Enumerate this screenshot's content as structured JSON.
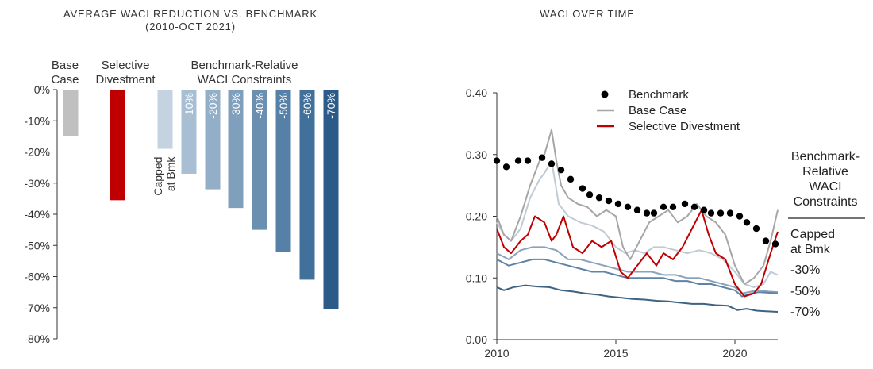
{
  "chart_data": [
    {
      "type": "bar",
      "title": "AVERAGE WACI REDUCTION VS. BENCHMARK",
      "subtitle": "(2010-OCT 2021)",
      "group_labels": [
        {
          "lines": [
            "Base",
            "Case"
          ]
        },
        {
          "lines": [
            "Selective",
            "Divestment"
          ]
        },
        {
          "lines": [
            "Benchmark-Relative",
            "WACI Constraints"
          ]
        }
      ],
      "categories": [
        "Base Case",
        "Selective Divestment",
        "Capped at Bmk",
        "-10%",
        "-20%",
        "-30%",
        "-40%",
        "-50%",
        "-60%",
        "-70%"
      ],
      "bar_labels": [
        "",
        "",
        "Capped at Bmk",
        "-10%",
        "-20%",
        "-30%",
        "-40%",
        "-50%",
        "-60%",
        "-70%"
      ],
      "values": [
        -15,
        -35.5,
        -19,
        -27,
        -32,
        -38,
        -45,
        -52,
        -61,
        -70.5
      ],
      "colors": [
        "#c0c0c0",
        "#c00000",
        "#c5d3e0",
        "#a8bfd3",
        "#93afc8",
        "#7f9fbc",
        "#6a8fb0",
        "#5680a6",
        "#41709a",
        "#2c5b8a"
      ],
      "ylim": [
        -80,
        0
      ],
      "yticks": [
        0,
        -10,
        -20,
        -30,
        -40,
        -50,
        -60,
        -70,
        -80
      ],
      "ytick_labels": [
        "0%",
        "-10%",
        "-20%",
        "-30%",
        "-40%",
        "-50%",
        "-60%",
        "-70%",
        "-80%"
      ],
      "xlabel": "",
      "ylabel": ""
    },
    {
      "type": "line",
      "title": "WACI OVER TIME",
      "xlim": [
        2010,
        2021.8
      ],
      "xticks": [
        2010,
        2015,
        2020
      ],
      "ylim": [
        0,
        0.4
      ],
      "yticks": [
        0,
        0.1,
        0.2,
        0.3,
        0.4
      ],
      "ytick_labels": [
        "0.00",
        "0.10",
        "0.20",
        "0.30",
        "0.40"
      ],
      "legend_position": "top-left",
      "side_label": {
        "lines": [
          "Benchmark-",
          "Relative",
          "WACI",
          "Constraints"
        ]
      },
      "series": [
        {
          "name": "Benchmark",
          "style": "dots",
          "color": "#000000",
          "x": [
            2010,
            2010.4,
            2010.9,
            2011.3,
            2011.9,
            2012.3,
            2012.7,
            2013.1,
            2013.6,
            2013.9,
            2014.3,
            2014.7,
            2015.1,
            2015.5,
            2015.9,
            2016.3,
            2016.6,
            2017.0,
            2017.4,
            2017.9,
            2018.3,
            2018.7,
            2019.0,
            2019.4,
            2019.8,
            2020.2,
            2020.5,
            2020.9,
            2021.3,
            2021.7
          ],
          "y": [
            0.29,
            0.28,
            0.29,
            0.29,
            0.295,
            0.285,
            0.275,
            0.26,
            0.245,
            0.235,
            0.23,
            0.225,
            0.22,
            0.215,
            0.21,
            0.205,
            0.205,
            0.215,
            0.215,
            0.22,
            0.215,
            0.21,
            0.205,
            0.205,
            0.205,
            0.2,
            0.19,
            0.18,
            0.16,
            0.155
          ]
        },
        {
          "name": "Base Case",
          "style": "line",
          "color": "#a6a6a6",
          "in_legend": true,
          "x": [
            2010,
            2010.3,
            2010.6,
            2011.0,
            2011.4,
            2011.8,
            2012.0,
            2012.3,
            2012.5,
            2012.7,
            2013.0,
            2013.4,
            2013.8,
            2014.2,
            2014.6,
            2015.0,
            2015.3,
            2015.6,
            2016.0,
            2016.4,
            2016.8,
            2017.2,
            2017.6,
            2018.0,
            2018.4,
            2018.8,
            2019.2,
            2019.6,
            2020.0,
            2020.4,
            2020.8,
            2021.2,
            2021.5,
            2021.8
          ],
          "y": [
            0.2,
            0.17,
            0.16,
            0.2,
            0.25,
            0.29,
            0.3,
            0.34,
            0.29,
            0.25,
            0.23,
            0.22,
            0.215,
            0.2,
            0.21,
            0.2,
            0.15,
            0.13,
            0.16,
            0.19,
            0.2,
            0.21,
            0.19,
            0.2,
            0.22,
            0.2,
            0.19,
            0.17,
            0.12,
            0.09,
            0.1,
            0.12,
            0.16,
            0.21
          ]
        },
        {
          "name": "Selective Divestment",
          "style": "line",
          "color": "#c00000",
          "in_legend": true,
          "x": [
            2010,
            2010.3,
            2010.6,
            2011.0,
            2011.3,
            2011.6,
            2012.0,
            2012.3,
            2012.5,
            2012.8,
            2013.2,
            2013.6,
            2014.0,
            2014.4,
            2014.8,
            2015.2,
            2015.5,
            2015.9,
            2016.3,
            2016.7,
            2017.0,
            2017.4,
            2017.8,
            2018.2,
            2018.6,
            2018.9,
            2019.2,
            2019.6,
            2020.0,
            2020.4,
            2020.8,
            2021.1,
            2021.5,
            2021.8
          ],
          "y": [
            0.18,
            0.15,
            0.14,
            0.16,
            0.17,
            0.2,
            0.19,
            0.16,
            0.17,
            0.2,
            0.15,
            0.14,
            0.16,
            0.15,
            0.16,
            0.11,
            0.1,
            0.12,
            0.14,
            0.12,
            0.14,
            0.13,
            0.15,
            0.18,
            0.21,
            0.17,
            0.14,
            0.13,
            0.09,
            0.07,
            0.075,
            0.09,
            0.14,
            0.175
          ]
        },
        {
          "name": "Capped at Bmk",
          "style": "line",
          "color": "#bfcad6",
          "in_legend": false,
          "x": [
            2010,
            2010.3,
            2010.6,
            2011.0,
            2011.4,
            2011.8,
            2012.0,
            2012.3,
            2012.6,
            2013.0,
            2013.5,
            2014.0,
            2014.5,
            2015.0,
            2015.4,
            2015.8,
            2016.2,
            2016.6,
            2017.0,
            2017.5,
            2018.0,
            2018.5,
            2019.0,
            2019.5,
            2020.0,
            2020.4,
            2020.8,
            2021.2,
            2021.5,
            2021.8
          ],
          "y": [
            0.19,
            0.17,
            0.16,
            0.18,
            0.23,
            0.26,
            0.27,
            0.29,
            0.22,
            0.2,
            0.19,
            0.185,
            0.175,
            0.15,
            0.14,
            0.145,
            0.14,
            0.15,
            0.15,
            0.145,
            0.14,
            0.145,
            0.14,
            0.13,
            0.11,
            0.09,
            0.085,
            0.09,
            0.11,
            0.105
          ]
        },
        {
          "name": "-30%",
          "style": "line",
          "color": "#8aa2ba",
          "in_legend": false,
          "x": [
            2010,
            2010.5,
            2011.0,
            2011.5,
            2012.0,
            2012.5,
            2013.0,
            2013.5,
            2014.0,
            2014.5,
            2015.0,
            2015.5,
            2016.0,
            2016.5,
            2017.0,
            2017.5,
            2018.0,
            2018.5,
            2019.0,
            2019.5,
            2020.0,
            2020.3,
            2020.7,
            2021.0,
            2021.4,
            2021.8
          ],
          "y": [
            0.14,
            0.13,
            0.145,
            0.15,
            0.15,
            0.145,
            0.13,
            0.13,
            0.125,
            0.12,
            0.115,
            0.11,
            0.11,
            0.11,
            0.105,
            0.105,
            0.1,
            0.1,
            0.095,
            0.09,
            0.085,
            0.075,
            0.078,
            0.08,
            0.078,
            0.077
          ]
        },
        {
          "name": "-50%",
          "style": "line",
          "color": "#5f83a6",
          "in_legend": false,
          "x": [
            2010,
            2010.5,
            2011.0,
            2011.5,
            2012.0,
            2012.5,
            2013.0,
            2013.5,
            2014.0,
            2014.5,
            2015.0,
            2015.5,
            2016.0,
            2016.5,
            2017.0,
            2017.5,
            2018.0,
            2018.5,
            2019.0,
            2019.5,
            2020.0,
            2020.3,
            2020.7,
            2021.0,
            2021.4,
            2021.8
          ],
          "y": [
            0.13,
            0.12,
            0.125,
            0.13,
            0.13,
            0.125,
            0.12,
            0.115,
            0.11,
            0.11,
            0.105,
            0.1,
            0.1,
            0.1,
            0.1,
            0.095,
            0.095,
            0.09,
            0.09,
            0.085,
            0.08,
            0.07,
            0.075,
            0.077,
            0.076,
            0.075
          ]
        },
        {
          "name": "-70%",
          "style": "line",
          "color": "#3d6282",
          "in_legend": false,
          "x": [
            2010,
            2010.3,
            2010.7,
            2011.2,
            2011.7,
            2012.2,
            2012.7,
            2013.2,
            2013.7,
            2014.2,
            2014.7,
            2015.2,
            2015.7,
            2016.2,
            2016.7,
            2017.2,
            2017.7,
            2018.2,
            2018.7,
            2019.2,
            2019.7,
            2020.1,
            2020.5,
            2020.9,
            2021.3,
            2021.8
          ],
          "y": [
            0.085,
            0.08,
            0.085,
            0.088,
            0.086,
            0.085,
            0.08,
            0.078,
            0.075,
            0.073,
            0.07,
            0.068,
            0.066,
            0.065,
            0.063,
            0.062,
            0.06,
            0.058,
            0.058,
            0.056,
            0.055,
            0.048,
            0.05,
            0.047,
            0.046,
            0.045
          ]
        }
      ],
      "right_labels": [
        {
          "lines": [
            "Capped",
            "at Bmk"
          ],
          "series": "Capped at Bmk"
        },
        {
          "lines": [
            "-30%"
          ],
          "series": "-30%"
        },
        {
          "lines": [
            "-50%"
          ],
          "series": "-50%"
        },
        {
          "lines": [
            "-70%"
          ],
          "series": "-70%"
        }
      ],
      "xlabel": "",
      "ylabel": ""
    }
  ]
}
